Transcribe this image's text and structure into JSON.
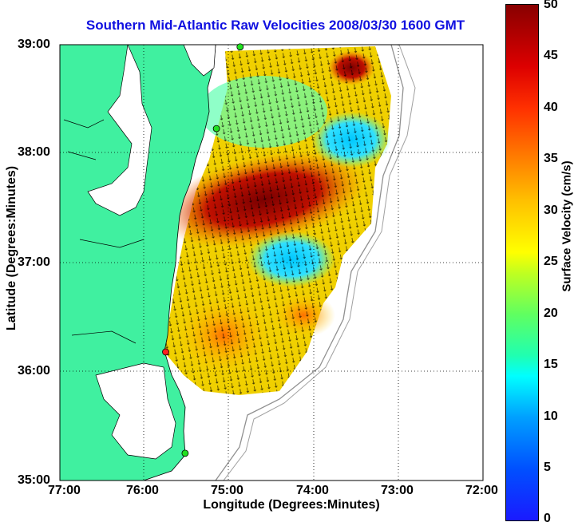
{
  "title": "Southern Mid-Atlantic Raw Velocities 2008/03/30 1600 GMT",
  "x_axis": {
    "label": "Longitude (Degrees:Minutes)",
    "ticks": [
      "77:00",
      "76:00",
      "75:00",
      "74:00",
      "73:00",
      "72:00"
    ]
  },
  "y_axis": {
    "label": "Latitude (Degrees:Minutes)",
    "ticks": [
      "39:00",
      "38:00",
      "37:00",
      "36:00",
      "35:00"
    ]
  },
  "colorbar": {
    "label": "Surface Velocity (cm/s)",
    "ticks": [
      "50",
      "45",
      "40",
      "35",
      "30",
      "25",
      "20",
      "15",
      "10",
      "5",
      "0"
    ],
    "range": [
      0,
      50
    ]
  },
  "colors": {
    "land": "#40f0a0",
    "water": "#ffffff",
    "title": "#1010e0",
    "station_active": "#20e020",
    "station_alert": "#ff2020"
  },
  "stations": [
    {
      "status": "active",
      "lat": 38.98,
      "lon": -74.87
    },
    {
      "status": "active",
      "lat": 38.23,
      "lon": -75.15
    },
    {
      "status": "alert",
      "lat": 36.18,
      "lon": -75.75
    },
    {
      "status": "active",
      "lat": 35.25,
      "lon": -75.52
    }
  ]
}
